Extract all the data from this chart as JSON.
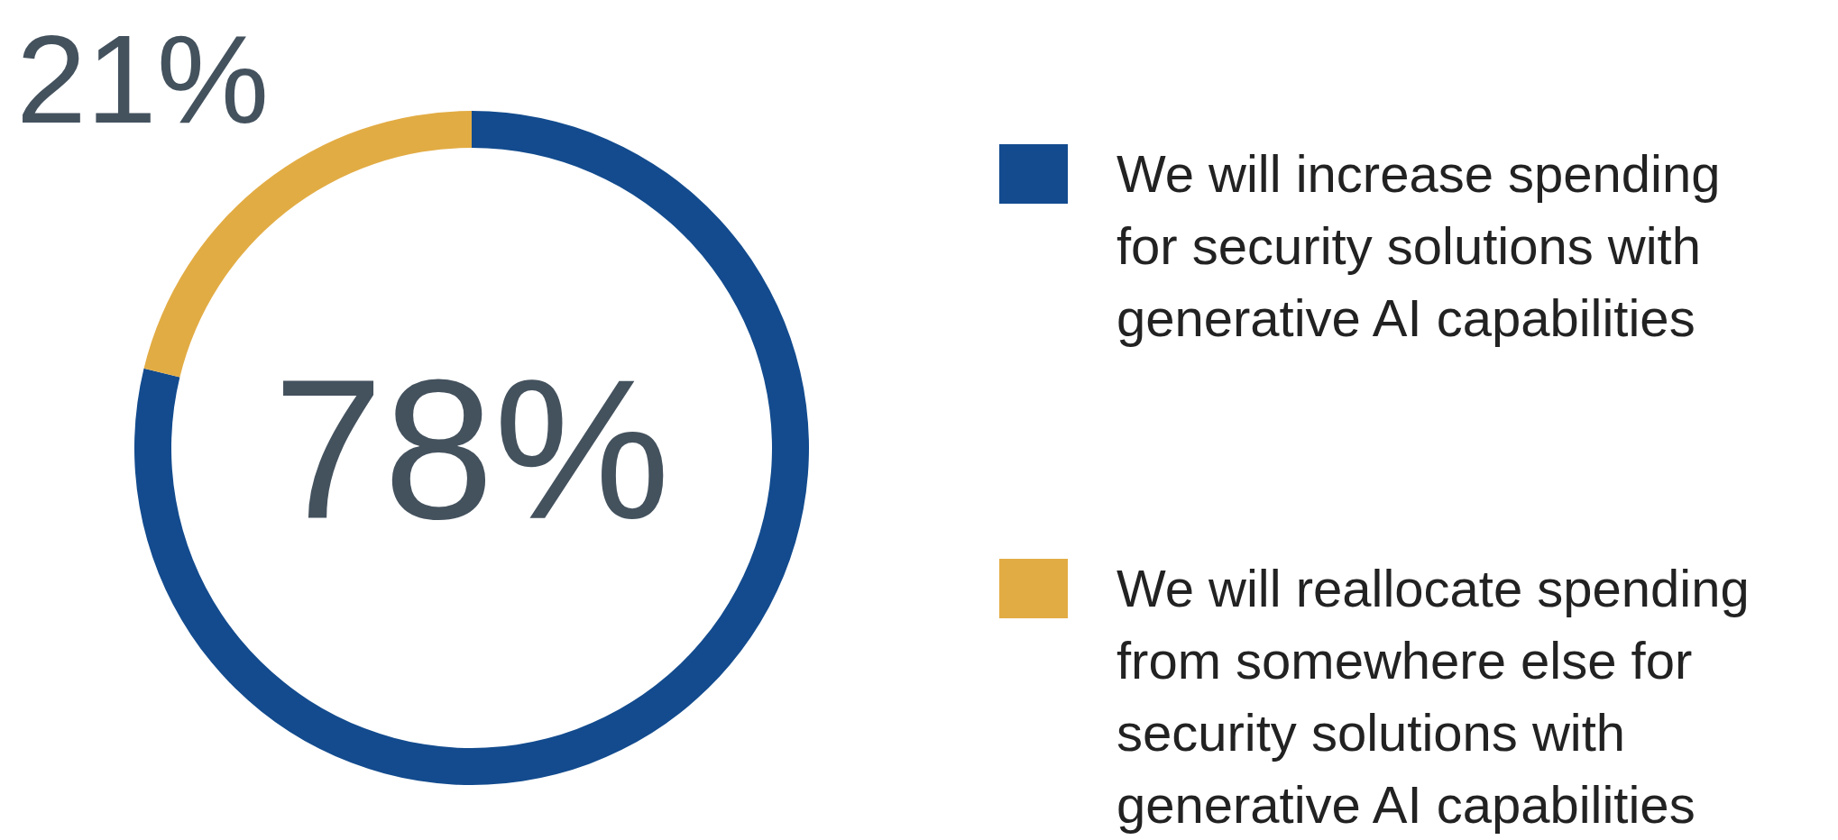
{
  "chart_data": {
    "type": "donut",
    "categories": [
      "We will increase spending for security solutions with generative AI capabilities",
      "We will reallocate spending from somewhere else for security solutions with generative AI capabilities"
    ],
    "values": [
      78,
      21
    ],
    "colors": [
      "#134b8e",
      "#e2ac44"
    ],
    "value_labels": [
      "78%",
      "21%"
    ],
    "legend": "right"
  }
}
